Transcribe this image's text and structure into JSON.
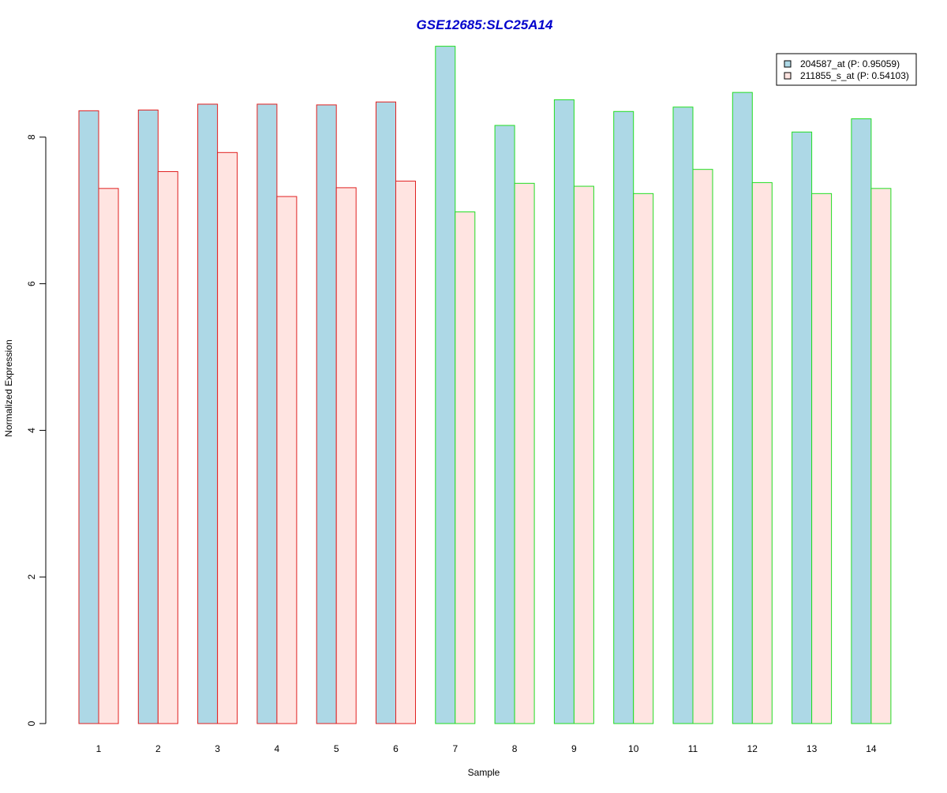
{
  "chart_data": {
    "type": "bar",
    "title": "GSE12685:SLC25A14",
    "xlabel": "Sample",
    "ylabel": "Normalized Expression",
    "ylim": [
      0,
      9.4
    ],
    "yticks": [
      0,
      2,
      4,
      6,
      8
    ],
    "grid": false,
    "legend_position": "top-right",
    "categories": [
      "1",
      "2",
      "3",
      "4",
      "5",
      "6",
      "7",
      "8",
      "9",
      "10",
      "11",
      "12",
      "13",
      "14"
    ],
    "group_border_colors": [
      "#e02020",
      "#e02020",
      "#e02020",
      "#e02020",
      "#e02020",
      "#e02020",
      "#22dd22",
      "#22dd22",
      "#22dd22",
      "#22dd22",
      "#22dd22",
      "#22dd22",
      "#22dd22",
      "#22dd22"
    ],
    "series": [
      {
        "name": "204587_at (P: 0.95059)",
        "fill": "#add8e6",
        "values": [
          8.36,
          8.37,
          8.45,
          8.45,
          8.44,
          8.48,
          9.24,
          8.16,
          8.51,
          8.35,
          8.41,
          8.61,
          8.07,
          8.25
        ]
      },
      {
        "name": "211855_s_at (P: 0.54103)",
        "fill": "#ffe4e1",
        "values": [
          7.3,
          7.53,
          7.79,
          7.19,
          7.31,
          7.4,
          6.98,
          7.37,
          7.33,
          7.23,
          7.56,
          7.38,
          7.23,
          7.3
        ]
      }
    ]
  },
  "colors": {
    "title": "#0000cc",
    "axis": "#000000",
    "background": "#ffffff"
  }
}
